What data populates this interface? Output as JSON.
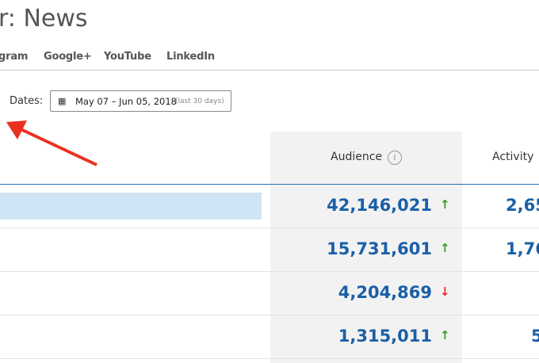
{
  "title": "r: News",
  "tabs": [
    "gram",
    "Google+",
    "YouTube",
    "LinkedIn"
  ],
  "dates": {
    "label": "Dates:",
    "range": "May 07 – Jun 05, 2018",
    "note": "(last 30 days)",
    "icon": "calendar-icon"
  },
  "table": {
    "headers": {
      "audience": "Audience",
      "activity": "Activity"
    },
    "rows": [
      {
        "audience": "42,146,021",
        "trend": "↑",
        "trend_dir": "up",
        "activity": "2,65"
      },
      {
        "audience": "15,731,601",
        "trend": "↑",
        "trend_dir": "up",
        "activity": "1,76"
      },
      {
        "audience": "4,204,869",
        "trend": "↓",
        "trend_dir": "down",
        "activity": ""
      },
      {
        "audience": "1,315,011",
        "trend": "↑",
        "trend_dir": "up",
        "activity": "5"
      }
    ]
  },
  "colors": {
    "value": "#1a5fa8",
    "up": "#3a9a2a",
    "down": "#e02b2b",
    "annotation_arrow": "#e8321f"
  }
}
